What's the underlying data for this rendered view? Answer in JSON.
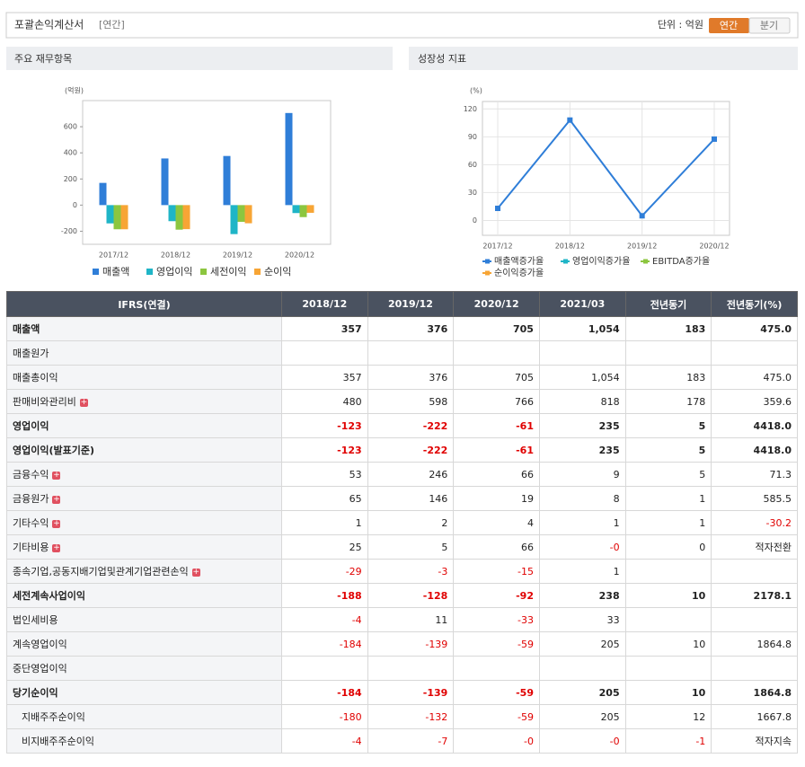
{
  "header": {
    "title": "포괄손익계산서",
    "tag": "[연간]",
    "unit": "단위 : 억원",
    "buttons": [
      "연간",
      "분기"
    ]
  },
  "chart_data": [
    {
      "type": "bar",
      "title": "주요 재무항목",
      "ylabel": "(억원)",
      "categories": [
        "2017/12",
        "2018/12",
        "2019/12",
        "2020/12"
      ],
      "series": [
        {
          "name": "매출액",
          "color": "#2f7ed8",
          "values": [
            170,
            357,
            376,
            705
          ]
        },
        {
          "name": "영업이익",
          "color": "#1fb5c7",
          "values": [
            -140,
            -123,
            -222,
            -61
          ]
        },
        {
          "name": "세전이익",
          "color": "#8cc63f",
          "values": [
            -185,
            -188,
            -128,
            -92
          ]
        },
        {
          "name": "순이익",
          "color": "#f7a535",
          "values": [
            -185,
            -184,
            -139,
            -59
          ]
        }
      ],
      "ylim": [
        -300,
        800
      ],
      "yticks": [
        -200,
        0,
        200,
        400,
        600
      ],
      "grid": false
    },
    {
      "type": "line",
      "title": "성장성 지표",
      "ylabel": "(%)",
      "categories": [
        "2017/12",
        "2018/12",
        "2019/12",
        "2020/12"
      ],
      "series": [
        {
          "name": "매출액증가율",
          "color": "#2f7ed8",
          "values": [
            13,
            108,
            5,
            87.5
          ]
        },
        {
          "name": "영업이익증가율",
          "color": "#1fb5c7",
          "values": [
            null,
            null,
            null,
            null
          ]
        },
        {
          "name": "EBITDA증가율",
          "color": "#8cc63f",
          "values": [
            null,
            null,
            null,
            null
          ]
        },
        {
          "name": "순이익증가율",
          "color": "#f7a535",
          "values": [
            null,
            null,
            null,
            null
          ]
        }
      ],
      "ylim": [
        -16,
        128
      ],
      "yticks": [
        0,
        30,
        60,
        90,
        120
      ],
      "grid": true
    }
  ],
  "table": {
    "columns": [
      "IFRS(연결)",
      "2018/12",
      "2019/12",
      "2020/12",
      "2021/03",
      "전년동기",
      "전년동기(%)"
    ],
    "rows": [
      {
        "label": "매출액",
        "bold": true,
        "cells": [
          "357",
          "376",
          "705",
          "1,054",
          "183",
          "475.0"
        ]
      },
      {
        "label": "매출원가",
        "cells": [
          null,
          null,
          null,
          null,
          null,
          null
        ]
      },
      {
        "label": "매출총이익",
        "cells": [
          "357",
          "376",
          "705",
          "1,054",
          "183",
          "475.0"
        ]
      },
      {
        "label": "판매비와관리비",
        "expand": true,
        "cells": [
          "480",
          "598",
          "766",
          "818",
          "178",
          "359.6"
        ]
      },
      {
        "label": "영업이익",
        "bold": true,
        "cells": [
          "-123",
          "-222",
          "-61",
          "235",
          "5",
          "4418.0"
        ]
      },
      {
        "label": "영업이익(발표기준)",
        "bold": true,
        "cells": [
          "-123",
          "-222",
          "-61",
          "235",
          "5",
          "4418.0"
        ]
      },
      {
        "label": "금융수익",
        "expand": true,
        "cells": [
          "53",
          "246",
          "66",
          "9",
          "5",
          "71.3"
        ]
      },
      {
        "label": "금융원가",
        "expand": true,
        "cells": [
          "65",
          "146",
          "19",
          "8",
          "1",
          "585.5"
        ]
      },
      {
        "label": "기타수익",
        "expand": true,
        "cells": [
          "1",
          "2",
          "4",
          "1",
          "1",
          "-30.2"
        ]
      },
      {
        "label": "기타비용",
        "expand": true,
        "cells": [
          "25",
          "5",
          "66",
          "-0",
          "0",
          "적자전환"
        ]
      },
      {
        "label": "종속기업,공동지배기업및관계기업관련손익",
        "expand": true,
        "cells": [
          "-29",
          "-3",
          "-15",
          "1",
          null,
          null
        ]
      },
      {
        "label": "세전계속사업이익",
        "bold": true,
        "cells": [
          "-188",
          "-128",
          "-92",
          "238",
          "10",
          "2178.1"
        ]
      },
      {
        "label": "법인세비용",
        "cells": [
          "-4",
          "11",
          "-33",
          "33",
          null,
          null
        ]
      },
      {
        "label": "계속영업이익",
        "cells": [
          "-184",
          "-139",
          "-59",
          "205",
          "10",
          "1864.8"
        ]
      },
      {
        "label": "중단영업이익",
        "cells": [
          null,
          null,
          null,
          null,
          null,
          null
        ]
      },
      {
        "label": "당기순이익",
        "bold": true,
        "cells": [
          "-184",
          "-139",
          "-59",
          "205",
          "10",
          "1864.8"
        ]
      },
      {
        "label": "지배주주순이익",
        "indent": true,
        "cells": [
          "-180",
          "-132",
          "-59",
          "205",
          "12",
          "1667.8"
        ]
      },
      {
        "label": "비지배주주순이익",
        "indent": true,
        "cells": [
          "-4",
          "-7",
          "-0",
          "-0",
          "-1",
          "적자지속"
        ]
      }
    ]
  }
}
